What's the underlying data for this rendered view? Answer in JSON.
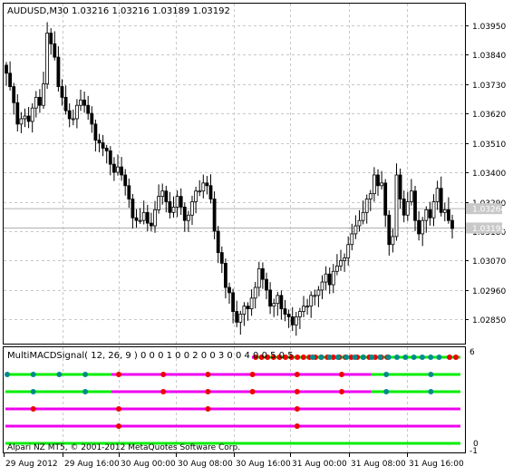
{
  "window": {
    "title": "AUDUSD,M30  1.03216 1.03216 1.03189 1.03192"
  },
  "price_axis": {
    "labels": [
      "1.03950",
      "1.03840",
      "1.03730",
      "1.03620",
      "1.03510",
      "1.03400",
      "1.03290",
      "1.03180",
      "1.03070",
      "1.02960",
      "1.02850"
    ],
    "tag_upper": "1.03264",
    "tag_current": "1.03192"
  },
  "indicator": {
    "title": "MultiMACDSignal( 12, 26, 9 ) 0 0 0 1 0 0 2 0 0 3 0 0 4 0 0 5 0 5",
    "scale_top": "6",
    "scale_zero": "0",
    "scale_neg": "-1",
    "copyright": "Alpari NZ MT5, © 2001-2012 MetaQuotes Software Corp."
  },
  "time_axis": {
    "labels": [
      "29 Aug 2012",
      "29 Aug 16:00",
      "30 Aug 00:00",
      "30 Aug 08:00",
      "30 Aug 16:00",
      "31 Aug 00:00",
      "31 Aug 08:00",
      "31 Aug 16:00"
    ]
  },
  "colors": {
    "green": "#00ee00",
    "magenta": "#ee00ee",
    "red_dot": "#ee0000",
    "teal_dot": "#008b8b",
    "grid": "#c8c8c8"
  },
  "chart_data": {
    "type": "candlestick",
    "symbol": "AUDUSD",
    "timeframe": "M30",
    "ohlc_header": [
      1.03216,
      1.03216,
      1.03189,
      1.03192
    ],
    "ylim": [
      1.0276,
      1.0403
    ],
    "close_prices": [
      1.0377,
      1.0372,
      1.0366,
      1.0358,
      1.036,
      1.0361,
      1.0359,
      1.0364,
      1.0368,
      1.0365,
      1.0373,
      1.0392,
      1.0388,
      1.0383,
      1.0372,
      1.0368,
      1.0363,
      1.036,
      1.036,
      1.0365,
      1.0367,
      1.0365,
      1.0362,
      1.0358,
      1.0352,
      1.0351,
      1.0349,
      1.0348,
      1.0343,
      1.034,
      1.0342,
      1.0339,
      1.0335,
      1.033,
      1.0323,
      1.0322,
      1.0322,
      1.0325,
      1.0321,
      1.032,
      1.0326,
      1.0331,
      1.0333,
      1.0329,
      1.0325,
      1.0327,
      1.0331,
      1.0327,
      1.0322,
      1.0324,
      1.0329,
      1.0333,
      1.0333,
      1.0336,
      1.0335,
      1.033,
      1.0318,
      1.031,
      1.0306,
      1.0297,
      1.0295,
      1.0288,
      1.0284,
      1.0287,
      1.029,
      1.0289,
      1.0293,
      1.0297,
      1.0304,
      1.03,
      1.0296,
      1.029,
      1.0291,
      1.0294,
      1.0289,
      1.0287,
      1.0286,
      1.0283,
      1.0286,
      1.0288,
      1.029,
      1.029,
      1.0294,
      1.0294,
      1.0296,
      1.0299,
      1.0302,
      1.0298,
      1.0303,
      1.0305,
      1.0307,
      1.0308,
      1.0313,
      1.0317,
      1.032,
      1.0322,
      1.0325,
      1.033,
      1.0332,
      1.0339,
      1.0335,
      1.0336,
      1.0324,
      1.0313,
      1.0316,
      1.0339,
      1.033,
      1.0324,
      1.0329,
      1.0333,
      1.0322,
      1.0317,
      1.0322,
      1.0326,
      1.0323,
      1.0329,
      1.0334,
      1.0325,
      1.0326,
      1.0322,
      1.0319
    ],
    "indicator_rows": [
      {
        "line_color": "magenta_green",
        "switch_index": 67,
        "red_dots": [
          0,
          3,
          6,
          9,
          12,
          15,
          18,
          21,
          24,
          27,
          30,
          33,
          36,
          39,
          42,
          45,
          48,
          51,
          54,
          57,
          60,
          63,
          66,
          117,
          120
        ],
        "teal_dots": [
          68,
          71,
          74,
          77,
          80,
          83,
          86,
          89,
          92,
          95,
          98,
          101,
          104,
          107,
          110,
          113
        ]
      },
      {
        "line_color": "mixed",
        "red_dots": [
          30,
          42,
          54,
          66,
          78,
          90
        ],
        "teal_dots": [
          0,
          7,
          14,
          21,
          102,
          114
        ]
      },
      {
        "line_color": "mixed",
        "red_dots": [
          42,
          54,
          66,
          78,
          90
        ],
        "teal_dots": [
          7,
          21,
          102,
          114
        ]
      },
      {
        "line_color": "magenta",
        "red_dots": [
          7,
          30,
          54,
          78
        ],
        "teal_dots": []
      },
      {
        "line_color": "magenta",
        "red_dots": [
          30,
          78
        ],
        "teal_dots": []
      },
      {
        "line_color": "green",
        "red_dots": [],
        "teal_dots": []
      }
    ]
  }
}
